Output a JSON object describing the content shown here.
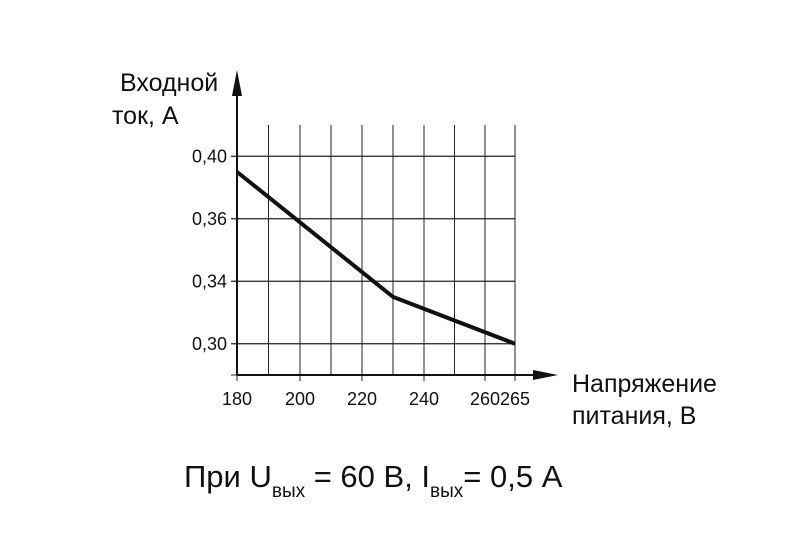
{
  "chart_data": {
    "type": "line",
    "ylabel": [
      "Входной",
      "ток,  А"
    ],
    "xlabel": [
      "Напряжение",
      "питания, В"
    ],
    "note": [
      "При U",
      "вых",
      " = 60 В, I",
      "вых",
      "= 0,5 А"
    ],
    "x": [
      180,
      230,
      265
    ],
    "series": [
      {
        "color": "#111111",
        "values": [
          0.39,
          0.33,
          0.3
        ]
      }
    ],
    "xlim": [
      180,
      265
    ],
    "xticks": [
      180,
      200,
      220,
      240,
      260,
      265
    ],
    "ylim": [
      0.28,
      0.42
    ],
    "yticks": [
      {
        "value": 0.3,
        "label": "0,30"
      },
      {
        "value": 0.34,
        "label": "0,34"
      },
      {
        "value": 0.36,
        "label": "0,36"
      },
      {
        "value": 0.4,
        "label": "0,40"
      }
    ],
    "grid": true
  }
}
